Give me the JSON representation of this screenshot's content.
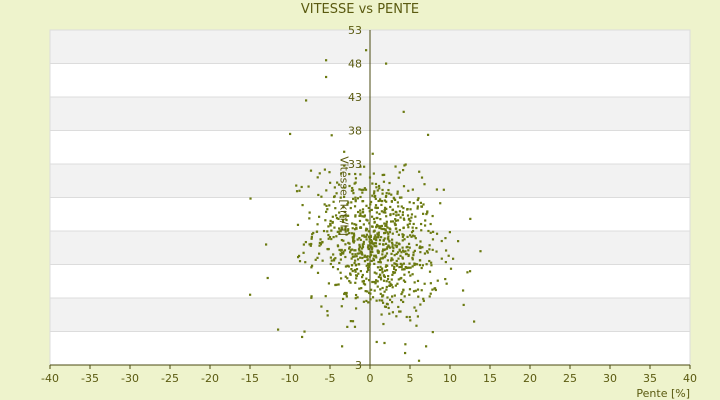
{
  "colors": {
    "background": "#eef3cc",
    "band_white": "#ffffff",
    "band_gray": "#f2f2f2",
    "grid": "#dcdcdc",
    "axis": "#4a4a10",
    "point": "#6b7a10"
  },
  "chart_data": {
    "type": "scatter",
    "title": "VITESSE vs PENTE",
    "xlabel": "Pente [%]",
    "ylabel": "Vitesse [km/h]",
    "xlim": [
      -40,
      40
    ],
    "ylim": [
      3,
      53
    ],
    "x_ticks": [
      -40,
      -35,
      -30,
      -25,
      -20,
      -15,
      -10,
      -5,
      0,
      5,
      10,
      15,
      20,
      25,
      30,
      35,
      40
    ],
    "y_ticks": [
      3,
      8,
      13,
      18,
      23,
      28,
      33,
      38,
      43,
      48,
      53
    ],
    "y_tick_labels": [
      "3",
      "",
      "",
      "",
      "",
      "",
      "33",
      "38",
      "43",
      "48",
      "53"
    ],
    "grid": true,
    "legend": "none",
    "points_outliers": [
      [
        -0.5,
        50
      ],
      [
        -5.5,
        48.5
      ],
      [
        2,
        48
      ],
      [
        -5.5,
        46
      ],
      [
        -8,
        42.5
      ],
      [
        4.2,
        40.8
      ],
      [
        -10,
        37.5
      ],
      [
        -4.8,
        37.3
      ],
      [
        -13,
        21
      ],
      [
        -12.8,
        16
      ],
      [
        -15,
        13.5
      ],
      [
        -11.5,
        8.3
      ],
      [
        -8.2,
        8
      ],
      [
        13,
        9.5
      ],
      [
        13.8,
        20
      ],
      [
        11,
        21.5
      ],
      [
        6.8,
        30
      ],
      [
        7,
        5.8
      ],
      [
        -3.5,
        5.8
      ],
      [
        1.8,
        6.3
      ],
      [
        -8.5,
        7.2
      ]
    ],
    "cloud": {
      "count": 900,
      "x_mean": 0.8,
      "x_sd": 3.9,
      "y_mean": 21,
      "y_sd": 5.4,
      "correlation": -0.2,
      "seed": 12345
    }
  }
}
